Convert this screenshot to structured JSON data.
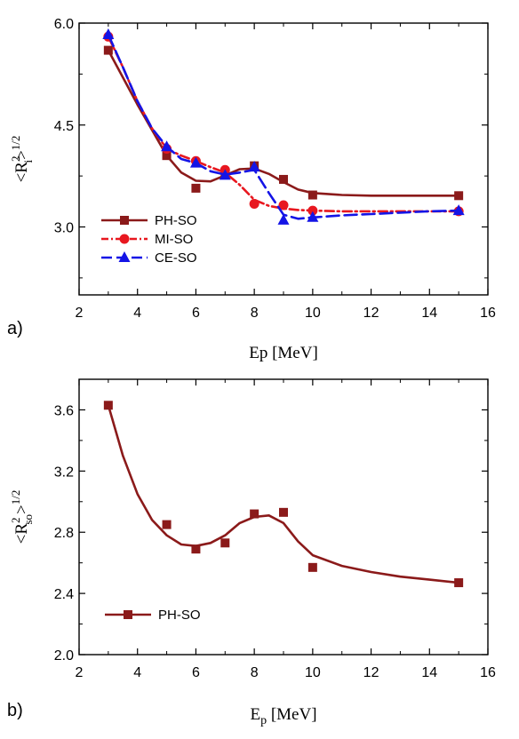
{
  "chart_data": [
    {
      "type": "line",
      "panel_label": "a)",
      "xlabel": "Ep [MeV]",
      "ylabel_prefix": "<R",
      "ylabel_sup": "2",
      "ylabel_sub": "i",
      "ylabel_suffix": ">",
      "ylabel_exp": "1/2",
      "xlim": [
        2,
        16
      ],
      "ylim": [
        2.0,
        6.0
      ],
      "xticks": [
        2,
        4,
        6,
        8,
        10,
        12,
        14,
        16
      ],
      "yticks": [
        3.0,
        4.5,
        6.0
      ],
      "ytick_labels": [
        "3.0",
        "4.5",
        "6.0"
      ],
      "legend_position": "bottom-left",
      "series": [
        {
          "name": "PH-SO",
          "color": "#8B1A1A",
          "marker": "square",
          "line": "solid",
          "x": [
            3,
            5,
            6,
            7,
            8,
            9,
            10,
            15
          ],
          "y": [
            5.6,
            4.05,
            3.57,
            3.78,
            3.9,
            3.7,
            3.47,
            3.46
          ],
          "curve_x": [
            3,
            4,
            5,
            5.5,
            6,
            6.5,
            7,
            7.5,
            8,
            8.5,
            9,
            9.5,
            10,
            11,
            12,
            13,
            14,
            15
          ],
          "curve_y": [
            5.6,
            4.8,
            4.05,
            3.8,
            3.68,
            3.67,
            3.76,
            3.85,
            3.86,
            3.78,
            3.66,
            3.55,
            3.5,
            3.47,
            3.46,
            3.46,
            3.46,
            3.46
          ]
        },
        {
          "name": "MI-SO",
          "color": "#E8171F",
          "marker": "circle",
          "line": "dashdot",
          "x": [
            3,
            5,
            6,
            7,
            8,
            9,
            10,
            15
          ],
          "y": [
            5.8,
            4.15,
            3.97,
            3.84,
            3.34,
            3.32,
            3.24,
            3.23
          ],
          "curve_x": [
            3,
            3.5,
            4,
            4.5,
            5,
            5.5,
            6,
            6.5,
            7,
            7.5,
            8,
            8.5,
            9,
            9.5,
            10,
            11,
            12,
            13,
            14,
            15
          ],
          "curve_y": [
            5.8,
            5.35,
            4.85,
            4.45,
            4.15,
            4.05,
            3.97,
            3.88,
            3.8,
            3.62,
            3.4,
            3.31,
            3.27,
            3.25,
            3.24,
            3.23,
            3.23,
            3.23,
            3.23,
            3.23
          ]
        },
        {
          "name": "CE-SO",
          "color": "#1414E6",
          "marker": "triangle",
          "line": "dashed",
          "x": [
            3,
            5,
            6,
            7,
            8,
            9,
            10,
            15
          ],
          "y": [
            5.83,
            4.18,
            3.94,
            3.76,
            3.88,
            3.1,
            3.14,
            3.24
          ],
          "curve_x": [
            3,
            3.5,
            4,
            4.5,
            5,
            5.5,
            6,
            6.5,
            7,
            7.5,
            8,
            8.5,
            9,
            9.5,
            10,
            11,
            12,
            13,
            14,
            15
          ],
          "curve_y": [
            5.83,
            5.35,
            4.85,
            4.45,
            4.18,
            4.0,
            3.94,
            3.82,
            3.77,
            3.8,
            3.84,
            3.5,
            3.18,
            3.12,
            3.14,
            3.17,
            3.19,
            3.21,
            3.23,
            3.24
          ]
        }
      ]
    },
    {
      "type": "line",
      "panel_label": "b)",
      "xlabel_main": "E",
      "xlabel_sub": "p",
      "xlabel_rest": " [MeV]",
      "ylabel_prefix": "<R",
      "ylabel_sup": "2",
      "ylabel_sub": "so",
      "ylabel_suffix": ">",
      "ylabel_exp": "1/2",
      "xlim": [
        2,
        16
      ],
      "ylim": [
        2.0,
        3.8
      ],
      "xticks": [
        2,
        4,
        6,
        8,
        10,
        12,
        14,
        16
      ],
      "yticks": [
        2.0,
        2.4,
        2.8,
        3.2,
        3.6
      ],
      "ytick_labels": [
        "2.0",
        "2.4",
        "2.8",
        "3.2",
        "3.6"
      ],
      "legend_position": "bottom-left",
      "series": [
        {
          "name": "PH-SO",
          "color": "#8B1A1A",
          "marker": "square",
          "line": "solid",
          "x": [
            3,
            5,
            6,
            7,
            8,
            9,
            10,
            15
          ],
          "y": [
            3.63,
            2.85,
            2.69,
            2.73,
            2.92,
            2.93,
            2.57,
            2.47
          ],
          "curve_x": [
            3,
            3.5,
            4,
            4.5,
            5,
            5.5,
            6,
            6.5,
            7,
            7.5,
            8,
            8.5,
            9,
            9.5,
            10,
            11,
            12,
            13,
            14,
            15
          ],
          "curve_y": [
            3.63,
            3.3,
            3.05,
            2.88,
            2.78,
            2.72,
            2.71,
            2.73,
            2.78,
            2.86,
            2.9,
            2.91,
            2.86,
            2.74,
            2.65,
            2.58,
            2.54,
            2.51,
            2.49,
            2.47
          ]
        }
      ]
    }
  ]
}
